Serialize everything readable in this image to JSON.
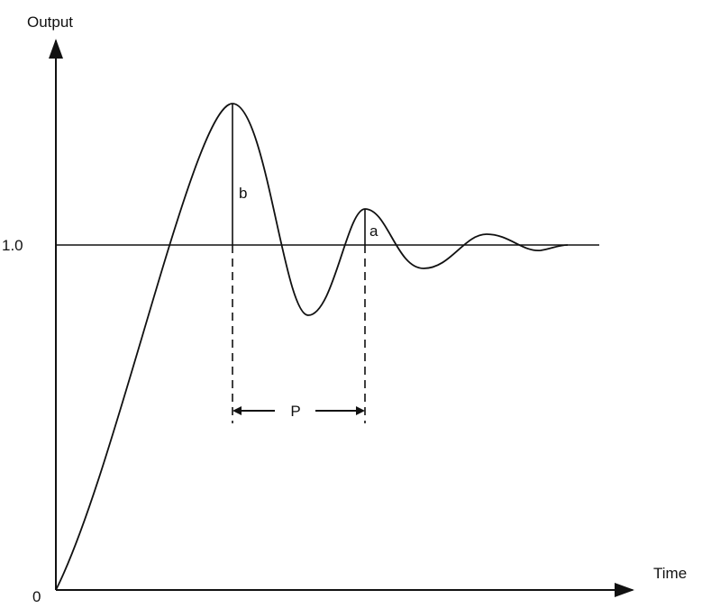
{
  "axes": {
    "y_label": "Output",
    "x_label": "Time",
    "reference_label": "1.0",
    "origin_label": "0"
  },
  "annotations": {
    "first_peak": "b",
    "second_peak": "a",
    "period": "P"
  }
}
